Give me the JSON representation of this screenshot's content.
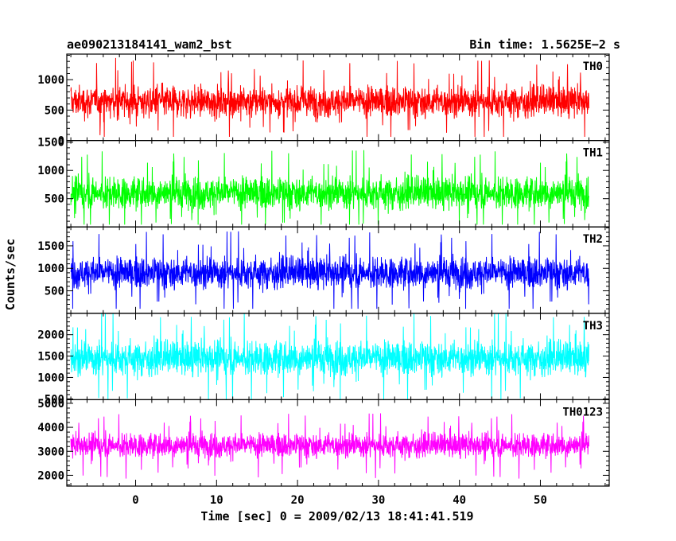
{
  "header": {
    "title": "ae090213184141_wam2_bst",
    "bin_time": "Bin time: 1.5625E−2 s"
  },
  "axes": {
    "xlabel": "Time [sec] 0 = 2009/02/13 18:41:41.519",
    "ylabel": "Counts/sec"
  },
  "chart_data": {
    "type": "line",
    "title": "ae090213184141_wam2_bst",
    "subtitle": "Bin time: 1.5625E−2 s",
    "xlabel": "Time [sec] 0 = 2009/02/13 18:41:41.519",
    "ylabel": "Counts/sec",
    "xlim": [
      -8.5,
      58.5
    ],
    "x_range_data": [
      -8.0,
      56.0
    ],
    "x_ticks": [
      0,
      10,
      20,
      30,
      40,
      50
    ],
    "grid": false,
    "legend": "none",
    "bin_time_s": 0.015625,
    "panels": [
      {
        "name": "TH0",
        "color": "#ff0000",
        "ylim": [
          0,
          1420
        ],
        "y_ticks": [
          0,
          500,
          1000
        ],
        "y_tick_labels": [
          "0",
          "500",
          "1000"
        ],
        "mean": 640,
        "spread": 330,
        "floor": 60,
        "ceil": 1420
      },
      {
        "name": "TH1",
        "color": "#00ff00",
        "ylim": [
          0,
          1530
        ],
        "y_ticks": [
          500,
          1000,
          1500
        ],
        "y_tick_labels": [
          "500",
          "1000",
          "1500"
        ],
        "mean": 600,
        "spread": 370,
        "floor": 40,
        "ceil": 1530
      },
      {
        "name": "TH2",
        "color": "#0000ff",
        "ylim": [
          0,
          1920
        ],
        "y_ticks": [
          500,
          1000,
          1500
        ],
        "y_tick_labels": [
          "500",
          "1000",
          "1500"
        ],
        "mean": 900,
        "spread": 450,
        "floor": 100,
        "ceil": 1920
      },
      {
        "name": "TH3",
        "color": "#00ffff",
        "ylim": [
          480,
          2500
        ],
        "y_ticks": [
          500,
          1000,
          1500,
          2000
        ],
        "y_tick_labels": [
          "500",
          "1000",
          "1500",
          "2000"
        ],
        "mean": 1450,
        "spread": 520,
        "floor": 480,
        "ceil": 2500
      },
      {
        "name": "TH0123",
        "color": "#ff00ff",
        "ylim": [
          1550,
          5150
        ],
        "y_ticks": [
          2000,
          3000,
          4000,
          5000
        ],
        "y_tick_labels": [
          "2000",
          "3000",
          "4000",
          "5000"
        ],
        "mean": 3250,
        "spread": 650,
        "floor": 1550,
        "ceil": 5150
      }
    ]
  }
}
